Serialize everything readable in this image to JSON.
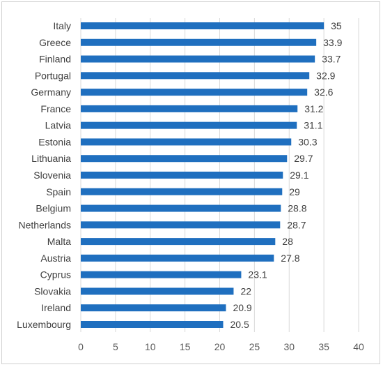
{
  "chart_data": {
    "type": "bar",
    "orientation": "horizontal",
    "categories": [
      "Italy",
      "Greece",
      "Finland",
      "Portugal",
      "Germany",
      "France",
      "Latvia",
      "Estonia",
      "Lithuania",
      "Slovenia",
      "Spain",
      "Belgium",
      "Netherlands",
      "Malta",
      "Austria",
      "Cyprus",
      "Slovakia",
      "Ireland",
      "Luxembourg"
    ],
    "values": [
      35,
      33.9,
      33.7,
      32.9,
      32.6,
      31.2,
      31.1,
      30.3,
      29.7,
      29.1,
      29,
      28.8,
      28.7,
      28,
      27.8,
      23.1,
      22,
      20.9,
      20.5
    ],
    "value_labels": [
      "35",
      "33.9",
      "33.7",
      "32.9",
      "32.6",
      "31.2",
      "31.1",
      "30.3",
      "29.7",
      "29.1",
      "29",
      "28.8",
      "28.7",
      "28",
      "27.8",
      "23.1",
      "22",
      "20.9",
      "20.5"
    ],
    "xlim": [
      0,
      40
    ],
    "xticks": [
      0,
      5,
      10,
      15,
      20,
      25,
      30,
      35,
      40
    ],
    "xtick_labels": [
      "0",
      "5",
      "10",
      "15",
      "20",
      "25",
      "30",
      "35",
      "40"
    ],
    "grid": "vertical",
    "legend": "none",
    "bar_color": "#1f6fbf",
    "grid_color": "#d9d9d9",
    "title": "",
    "xlabel": "",
    "ylabel": ""
  }
}
